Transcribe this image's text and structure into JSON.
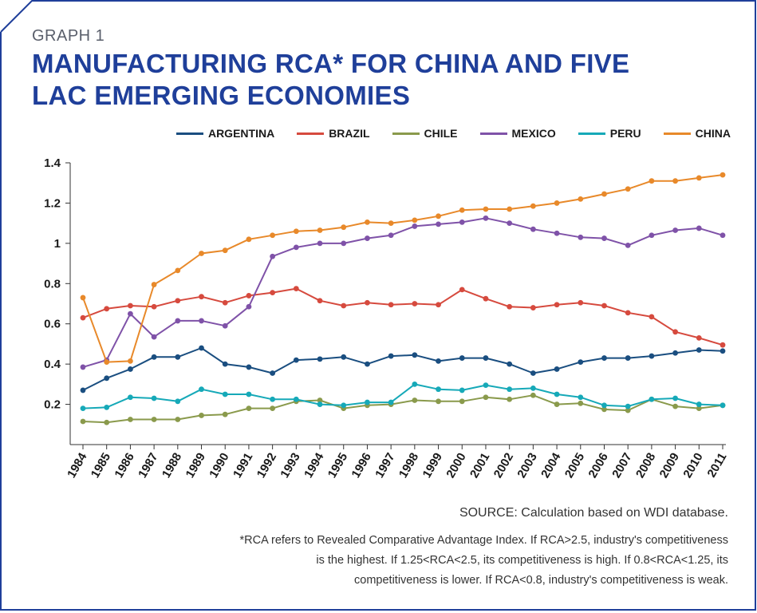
{
  "graph_label": "GRAPH 1",
  "title_line1": "MANUFACTURING RCA* FOR CHINA AND FIVE",
  "title_line2": "LAC EMERGING ECONOMIES",
  "source": "SOURCE: Calculation based on WDI database.",
  "footnote_line1": "*RCA refers to Revealed Comparative Advantage Index. If RCA>2.5, industry's competitiveness",
  "footnote_line2": "is the highest. If 1.25<RCA<2.5, its competitiveness is high. If 0.8<RCA<1.25, its",
  "footnote_line3": "competitiveness is lower. If RCA<0.8, industry's competitiveness is weak.",
  "colors": {
    "frame": "#1f3f9a",
    "title": "#1f3f9a",
    "argentina": "#1a4e80",
    "brazil": "#d64a3e",
    "chile": "#8a9a4c",
    "mexico": "#7f52a8",
    "peru": "#16a9b8",
    "china": "#e8892a"
  },
  "chart_data": {
    "type": "line",
    "x": [
      "1984",
      "1985",
      "1986",
      "1987",
      "1988",
      "1989",
      "1990",
      "1991",
      "1992",
      "1993",
      "1994",
      "1995",
      "1996",
      "1997",
      "1998",
      "1999",
      "2000",
      "2001",
      "2002",
      "2003",
      "2004",
      "2005",
      "2006",
      "2007",
      "2008",
      "2009",
      "2010",
      "2011"
    ],
    "ylim": [
      0,
      1.4
    ],
    "yticks": [
      "1.4",
      "1.2",
      "1",
      "0.8",
      "0.6",
      "0.4",
      "0.2"
    ],
    "ytick_values": [
      1.4,
      1.2,
      1.0,
      0.8,
      0.6,
      0.4,
      0.2
    ],
    "legend_position": "top-right",
    "series": [
      {
        "name": "ARGENTINA",
        "color": "#1a4e80",
        "values": [
          0.27,
          0.33,
          0.375,
          0.435,
          0.435,
          0.48,
          0.4,
          0.385,
          0.355,
          0.42,
          0.425,
          0.435,
          0.4,
          0.44,
          0.445,
          0.415,
          0.43,
          0.43,
          0.4,
          0.355,
          0.375,
          0.41,
          0.43,
          0.43,
          0.44,
          0.455,
          0.47,
          0.465
        ]
      },
      {
        "name": "BRAZIL",
        "color": "#d64a3e",
        "values": [
          0.63,
          0.675,
          0.69,
          0.685,
          0.715,
          0.735,
          0.705,
          0.74,
          0.755,
          0.775,
          0.715,
          0.69,
          0.705,
          0.695,
          0.7,
          0.695,
          0.77,
          0.725,
          0.685,
          0.68,
          0.695,
          0.705,
          0.69,
          0.655,
          0.635,
          0.56,
          0.53,
          0.495
        ]
      },
      {
        "name": "CHILE",
        "color": "#8a9a4c",
        "values": [
          0.115,
          0.11,
          0.125,
          0.125,
          0.125,
          0.145,
          0.15,
          0.18,
          0.18,
          0.215,
          0.22,
          0.18,
          0.195,
          0.2,
          0.22,
          0.215,
          0.215,
          0.235,
          0.225,
          0.245,
          0.2,
          0.205,
          0.175,
          0.17,
          0.225,
          0.19,
          0.18,
          0.195
        ]
      },
      {
        "name": "MEXICO",
        "color": "#7f52a8",
        "values": [
          0.385,
          0.42,
          0.65,
          0.535,
          0.615,
          0.615,
          0.59,
          0.685,
          0.935,
          0.98,
          1.0,
          1.0,
          1.025,
          1.04,
          1.085,
          1.095,
          1.105,
          1.125,
          1.1,
          1.07,
          1.05,
          1.03,
          1.025,
          0.99,
          1.04,
          1.065,
          1.075,
          1.04
        ]
      },
      {
        "name": "PERU",
        "color": "#16a9b8",
        "values": [
          0.18,
          0.185,
          0.235,
          0.23,
          0.215,
          0.275,
          0.25,
          0.25,
          0.225,
          0.225,
          0.2,
          0.195,
          0.21,
          0.21,
          0.3,
          0.275,
          0.27,
          0.295,
          0.275,
          0.28,
          0.25,
          0.235,
          0.195,
          0.19,
          0.225,
          0.23,
          0.2,
          0.195
        ]
      },
      {
        "name": "CHINA",
        "color": "#e8892a",
        "values": [
          0.73,
          0.41,
          0.415,
          0.795,
          0.865,
          0.95,
          0.965,
          1.02,
          1.04,
          1.06,
          1.065,
          1.08,
          1.105,
          1.1,
          1.115,
          1.135,
          1.165,
          1.17,
          1.17,
          1.185,
          1.2,
          1.22,
          1.245,
          1.27,
          1.31,
          1.31,
          1.325,
          1.34
        ]
      }
    ]
  }
}
